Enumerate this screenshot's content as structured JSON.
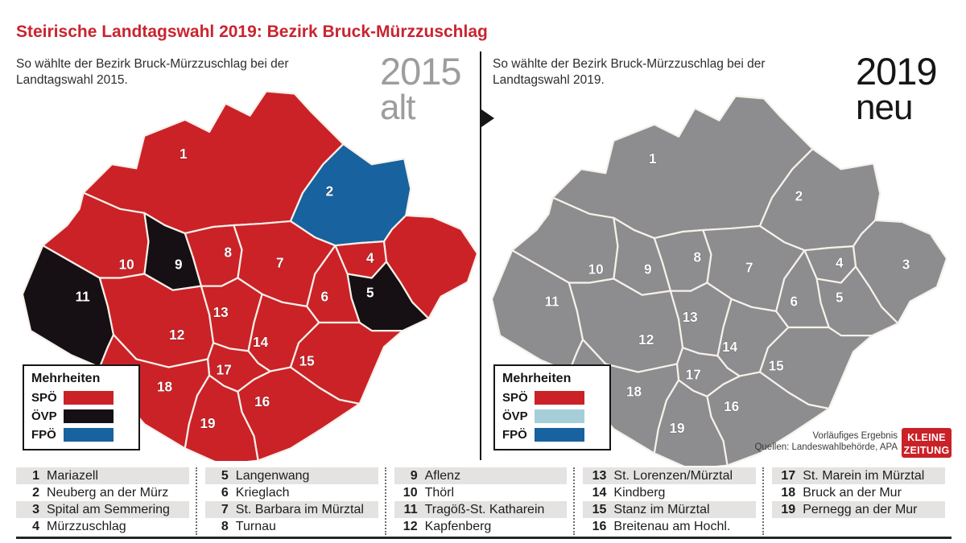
{
  "title": "Steirische Landtagswahl 2019: Bezirk Bruck-Mürzzuschlag",
  "panels": {
    "left": {
      "subtitle": "So wählte der Bezirk Bruck-Mürzzuschlag bei der Landtagswahl 2015.",
      "year": "2015",
      "tag": "alt"
    },
    "right": {
      "subtitle": "So wählte der Bezirk Bruck-Mürzzuschlag bei der Landtagswahl 2019.",
      "year": "2019",
      "tag": "neu"
    }
  },
  "legend": {
    "title": "Mehrheiten",
    "left": [
      {
        "party": "SPÖ",
        "color": "#cb2227"
      },
      {
        "party": "ÖVP",
        "color": "#161014"
      },
      {
        "party": "FPÖ",
        "color": "#17629f"
      }
    ],
    "right": [
      {
        "party": "SPÖ",
        "color": "#cb2227"
      },
      {
        "party": "ÖVP",
        "color": "#a5ced9"
      },
      {
        "party": "FPÖ",
        "color": "#17629f"
      }
    ]
  },
  "map": {
    "colors": {
      "SPÖ": "#cb2227",
      "ÖVP": "#161014",
      "FPÖ": "#17629f",
      "none": "#8d8c8e",
      "border": "#f6f1ea"
    },
    "regions": [
      {
        "id": 1,
        "name": "Mariazell",
        "party_2015": "SPÖ"
      },
      {
        "id": 2,
        "name": "Neuberg an der Mürz",
        "party_2015": "FPÖ"
      },
      {
        "id": 3,
        "name": "Spital am Semmering",
        "party_2015": "SPÖ"
      },
      {
        "id": 4,
        "name": "Mürzzuschlag",
        "party_2015": "SPÖ"
      },
      {
        "id": 5,
        "name": "Langenwang",
        "party_2015": "ÖVP"
      },
      {
        "id": 6,
        "name": "Krieglach",
        "party_2015": "SPÖ"
      },
      {
        "id": 7,
        "name": "St. Barbara im Mürztal",
        "party_2015": "SPÖ"
      },
      {
        "id": 8,
        "name": "Turnau",
        "party_2015": "SPÖ"
      },
      {
        "id": 9,
        "name": "Aflenz",
        "party_2015": "ÖVP"
      },
      {
        "id": 10,
        "name": "Thörl",
        "party_2015": "SPÖ"
      },
      {
        "id": 11,
        "name": "Tragöß-St. Katharein",
        "party_2015": "ÖVP"
      },
      {
        "id": 12,
        "name": "Kapfenberg",
        "party_2015": "SPÖ"
      },
      {
        "id": 13,
        "name": "St. Lorenzen/Mürztal",
        "party_2015": "SPÖ"
      },
      {
        "id": 14,
        "name": "Kindberg",
        "party_2015": "SPÖ"
      },
      {
        "id": 15,
        "name": "Stanz im Mürztal",
        "party_2015": "SPÖ"
      },
      {
        "id": 16,
        "name": "Breitenau am Hochl.",
        "party_2015": "SPÖ"
      },
      {
        "id": 17,
        "name": "St. Marein im Mürztal",
        "party_2015": "SPÖ"
      },
      {
        "id": 18,
        "name": "Bruck an der Mur",
        "party_2015": "SPÖ"
      },
      {
        "id": 19,
        "name": "Pernegg an der Mur",
        "party_2015": "SPÖ"
      }
    ]
  },
  "source": {
    "line1": "Vorläufiges Ergebnis",
    "line2": "Quellen: Landeswahlbehörde, APA"
  },
  "logo": {
    "line1": "KLEINE",
    "line2": "ZEITUNG"
  }
}
